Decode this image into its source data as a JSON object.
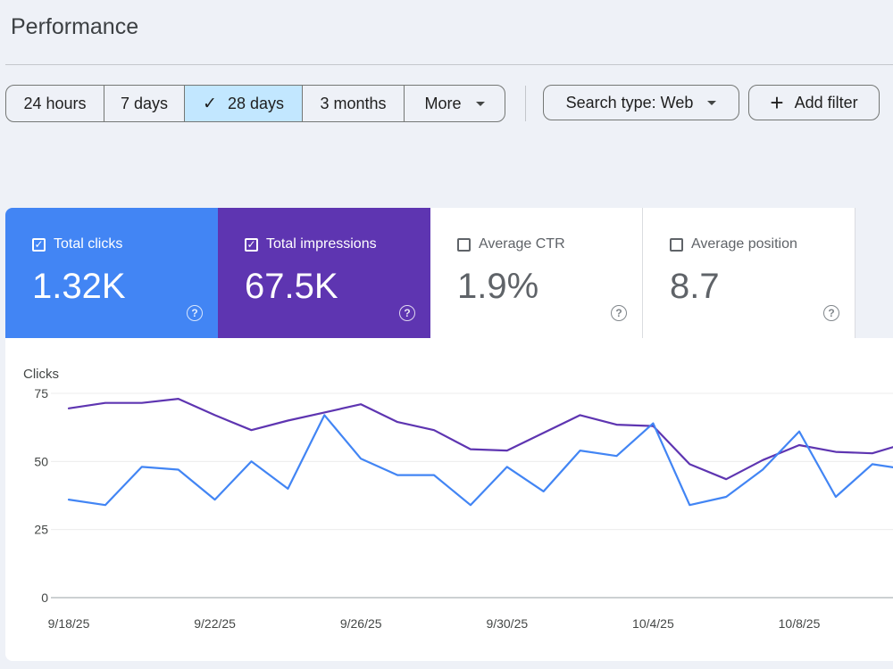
{
  "header": {
    "title": "Performance"
  },
  "date_range": {
    "options": [
      {
        "label": "24 hours",
        "selected": false
      },
      {
        "label": "7 days",
        "selected": false
      },
      {
        "label": "28 days",
        "selected": true
      },
      {
        "label": "3 months",
        "selected": false
      },
      {
        "label": "More",
        "selected": false
      }
    ],
    "check_glyph": "✓"
  },
  "filters": {
    "search_type_label": "Search type: Web",
    "add_filter_label": "Add filter",
    "add_icon": "plus-icon"
  },
  "metrics": [
    {
      "label": "Total clicks",
      "value": "1.32K",
      "checked": true,
      "color": "#4285f4"
    },
    {
      "label": "Total impressions",
      "value": "67.5K",
      "checked": true,
      "color": "#5e35b1"
    },
    {
      "label": "Average CTR",
      "value": "1.9%",
      "checked": false
    },
    {
      "label": "Average position",
      "value": "8.7",
      "checked": false
    }
  ],
  "help_glyph": "?",
  "chart_data": {
    "type": "line",
    "ylabel": "Clicks",
    "ylim": [
      0,
      75
    ],
    "yticks": [
      0,
      25,
      50,
      75
    ],
    "grid": true,
    "x": [
      "9/18/25",
      "9/19/25",
      "9/20/25",
      "9/21/25",
      "9/22/25",
      "9/23/25",
      "9/24/25",
      "9/25/25",
      "9/26/25",
      "9/27/25",
      "9/28/25",
      "9/29/25",
      "9/30/25",
      "10/1/25",
      "10/2/25",
      "10/3/25",
      "10/4/25",
      "10/5/25",
      "10/6/25",
      "10/7/25",
      "10/8/25",
      "10/9/25",
      "10/10/25",
      "10/11/25"
    ],
    "x_tick_labels": [
      "9/18/25",
      "9/22/25",
      "9/26/25",
      "9/30/25",
      "10/4/25",
      "10/8/25"
    ],
    "series": [
      {
        "name": "Total impressions",
        "color": "#5e35b1",
        "values": [
          69.5,
          71.5,
          71.5,
          73,
          67,
          61.5,
          65,
          68,
          71,
          64.5,
          61.5,
          54.5,
          54,
          60.5,
          67,
          63.5,
          63,
          49,
          43.5,
          50.5,
          56,
          53.5,
          53,
          57
        ]
      },
      {
        "name": "Total clicks",
        "color": "#4285f4",
        "values": [
          36,
          34,
          48,
          47,
          36,
          50,
          40,
          67,
          51,
          45,
          45,
          34,
          48,
          39,
          54,
          52,
          64,
          34,
          37,
          47,
          61,
          37,
          49,
          47
        ]
      }
    ]
  }
}
